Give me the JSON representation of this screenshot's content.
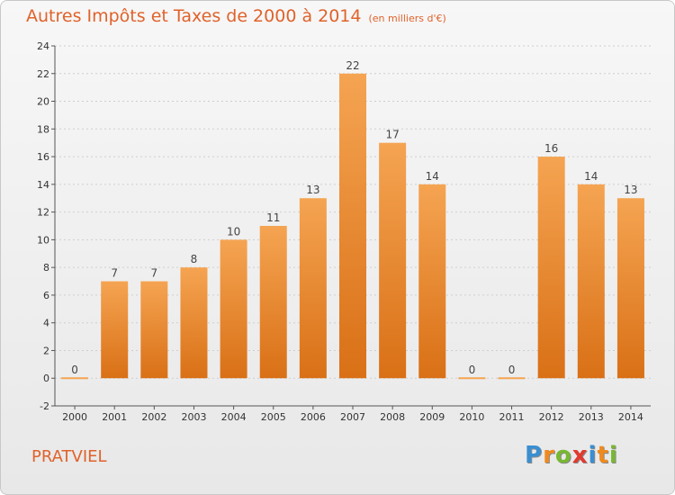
{
  "header": {
    "title": "Autres Impôts et Taxes de 2000 à 2014",
    "subtitle": "(en milliers d'€)"
  },
  "footer": {
    "commune": "PRATVIEL",
    "logo_letters": [
      "P",
      "r",
      "o",
      "x",
      "i",
      "t",
      "i"
    ],
    "logo_colors": [
      "#3a8fd1",
      "#f08a1c",
      "#78b832",
      "#e23a2e",
      "#3a8fd1",
      "#f08a1c",
      "#78b832"
    ]
  },
  "chart_data": {
    "type": "bar",
    "title": "Autres Impôts et Taxes de 2000 à 2014",
    "subtitle": "(en milliers d'€)",
    "categories": [
      "2000",
      "2001",
      "2002",
      "2003",
      "2004",
      "2005",
      "2006",
      "2007",
      "2008",
      "2009",
      "2010",
      "2011",
      "2012",
      "2013",
      "2014"
    ],
    "values": [
      0,
      7,
      7,
      8,
      10,
      11,
      13,
      22,
      17,
      14,
      0,
      0,
      16,
      14,
      13
    ],
    "ylim": [
      -2,
      24
    ],
    "yticks": [
      -2,
      0,
      2,
      4,
      6,
      8,
      10,
      12,
      14,
      16,
      18,
      20,
      22,
      24
    ],
    "grid": true,
    "bar_color_top": "#f5a452",
    "bar_color_bottom": "#d97016"
  }
}
